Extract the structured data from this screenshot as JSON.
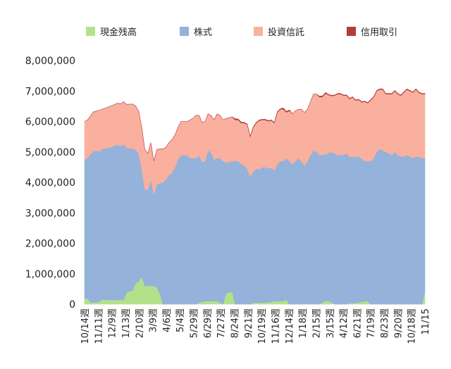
{
  "chart_data": {
    "type": "area",
    "stacked": true,
    "legend": {
      "placement": "top",
      "entries": [
        {
          "name": "現金残高",
          "color": "#b5e08a"
        },
        {
          "name": "株式",
          "color": "#95b2da"
        },
        {
          "name": "投資信託",
          "color": "#f9b09f"
        },
        {
          "name": "信用取引",
          "color": "#b53a3a"
        }
      ]
    },
    "y_axis": {
      "min": 0,
      "max": 8000000,
      "ticks": [
        0,
        1000000,
        2000000,
        3000000,
        4000000,
        5000000,
        6000000,
        7000000,
        8000000
      ],
      "tick_labels": [
        "0",
        "1,000,000",
        "2,000,000",
        "3,000,000",
        "4,000,000",
        "5,000,000",
        "6,000,000",
        "7,000,000",
        "8,000,000"
      ]
    },
    "x_axis": {
      "tick_labels": [
        "10/14週",
        "11/11週",
        "12/9週",
        "1/13週",
        "2/10週",
        "3/9週",
        "4/6週",
        "5/4週",
        "5/29週",
        "6/29週",
        "7/27週",
        "8/24週",
        "9/21週",
        "10/19週",
        "11/16週",
        "12/14週",
        "1/18週",
        "2/15週",
        "3/15週",
        "4/12週",
        "6/21週",
        "7/19週",
        "8/23週",
        "9/20週",
        "10/18週",
        "11/15"
      ]
    },
    "grid": false,
    "series": [
      {
        "name": "現金残高",
        "color": "#b5e08a",
        "values": [
          200000,
          180000,
          60000,
          60000,
          60000,
          100000,
          150000,
          130000,
          150000,
          140000,
          140000,
          140000,
          140000,
          140000,
          400000,
          420000,
          450000,
          700000,
          750000,
          900000,
          600000,
          600000,
          600000,
          600000,
          550000,
          350000,
          0,
          0,
          0,
          0,
          0,
          0,
          0,
          0,
          0,
          0,
          0,
          0,
          50000,
          80000,
          100000,
          100000,
          100000,
          100000,
          100000,
          50000,
          0,
          350000,
          400000,
          400000,
          0,
          0,
          0,
          0,
          0,
          0,
          50000,
          50000,
          50000,
          50000,
          50000,
          60000,
          80000,
          100000,
          100000,
          100000,
          100000,
          150000,
          0,
          0,
          0,
          0,
          0,
          0,
          0,
          0,
          0,
          0,
          0,
          60000,
          100000,
          100000,
          60000,
          0,
          0,
          0,
          0,
          0,
          40000,
          40000,
          40000,
          60000,
          80000,
          100000,
          100000,
          0,
          0,
          0,
          0,
          0,
          0,
          0,
          0,
          0,
          0,
          0,
          0,
          0,
          0,
          0,
          0,
          0,
          0,
          400000
        ]
      },
      {
        "name": "株式",
        "color": "#95b2da",
        "values": [
          4550000,
          4620000,
          4880000,
          4960000,
          4980000,
          4920000,
          4960000,
          4990000,
          4980000,
          5030000,
          5070000,
          5090000,
          5060000,
          5110000,
          4730000,
          4700000,
          4670000,
          4370000,
          4180000,
          3550000,
          3180000,
          3150000,
          3500000,
          3000000,
          3380000,
          3620000,
          4000000,
          4100000,
          4250000,
          4300000,
          4500000,
          4750000,
          4900000,
          4900000,
          4900000,
          4800000,
          4800000,
          4800000,
          4850000,
          4600000,
          4600000,
          4950000,
          4900000,
          4650000,
          4700000,
          4750000,
          4700000,
          4300000,
          4270000,
          4300000,
          4700000,
          4700000,
          4600000,
          4550000,
          4450000,
          4200000,
          4300000,
          4400000,
          4380000,
          4450000,
          4450000,
          4400000,
          4400000,
          4300000,
          4500000,
          4600000,
          4600000,
          4650000,
          4700000,
          4600000,
          4700000,
          4800000,
          4700000,
          4550000,
          4700000,
          4900000,
          5050000,
          5000000,
          4900000,
          4850000,
          4820000,
          4870000,
          4930000,
          4950000,
          4900000,
          4900000,
          4900000,
          4950000,
          4800000,
          4800000,
          4800000,
          4800000,
          4700000,
          4600000,
          4600000,
          4700000,
          4800000,
          5000000,
          5100000,
          5050000,
          5000000,
          4950000,
          4900000,
          5000000,
          4900000,
          4850000,
          4850000,
          4900000,
          4850000,
          4800000,
          4850000,
          4850000,
          4800000,
          4400000
        ]
      },
      {
        "name": "投資信託",
        "color": "#f9b09f",
        "values": [
          1250000,
          1250000,
          1250000,
          1300000,
          1300000,
          1350000,
          1300000,
          1320000,
          1350000,
          1350000,
          1350000,
          1370000,
          1380000,
          1400000,
          1420000,
          1450000,
          1450000,
          1430000,
          1400000,
          1350000,
          1300000,
          1200000,
          1200000,
          1100000,
          1150000,
          1130000,
          1100000,
          1050000,
          1050000,
          1100000,
          1050000,
          1050000,
          1100000,
          1100000,
          1100000,
          1250000,
          1300000,
          1400000,
          1300000,
          1300000,
          1300000,
          1200000,
          1200000,
          1300000,
          1450000,
          1400000,
          1350000,
          1450000,
          1450000,
          1450000,
          1350000,
          1350000,
          1350000,
          1400000,
          1450000,
          1300000,
          1450000,
          1500000,
          1600000,
          1550000,
          1550000,
          1550000,
          1550000,
          1550000,
          1700000,
          1700000,
          1700000,
          1500000,
          1650000,
          1650000,
          1650000,
          1600000,
          1700000,
          1750000,
          1700000,
          1750000,
          1850000,
          1900000,
          1900000,
          1900000,
          2000000,
          1900000,
          1850000,
          1900000,
          2000000,
          2000000,
          1950000,
          1900000,
          1900000,
          1950000,
          1850000,
          1850000,
          1850000,
          1950000,
          1900000,
          2000000,
          2000000,
          2000000,
          1950000,
          2000000,
          1900000,
          1950000,
          2000000,
          2000000,
          2000000,
          2000000,
          2100000,
          2150000,
          2150000,
          2150000,
          2200000,
          2100000,
          2100000,
          2100000
        ]
      },
      {
        "name": "信用取引",
        "color": "#b53a3a",
        "values": [
          0,
          0,
          0,
          0,
          0,
          0,
          0,
          0,
          0,
          0,
          0,
          0,
          0,
          0,
          0,
          0,
          0,
          0,
          0,
          0,
          0,
          0,
          0,
          0,
          0,
          0,
          0,
          0,
          0,
          0,
          0,
          0,
          0,
          0,
          0,
          0,
          0,
          0,
          0,
          0,
          0,
          0,
          0,
          0,
          0,
          0,
          0,
          0,
          0,
          0,
          40000,
          30000,
          30000,
          20000,
          20000,
          20000,
          20000,
          20000,
          20000,
          20000,
          20000,
          20000,
          20000,
          20000,
          20000,
          20000,
          40000,
          30000,
          30000,
          0,
          0,
          0,
          0,
          0,
          0,
          0,
          0,
          0,
          30000,
          30000,
          30000,
          20000,
          20000,
          20000,
          20000,
          20000,
          20000,
          20000,
          20000,
          20000,
          20000,
          20000,
          20000,
          20000,
          20000,
          20000,
          20000,
          20000,
          20000,
          20000,
          20000,
          20000,
          20000,
          20000,
          20000,
          20000,
          20000,
          20000,
          20000,
          20000,
          20000,
          20000,
          20000,
          20000
        ]
      }
    ]
  }
}
